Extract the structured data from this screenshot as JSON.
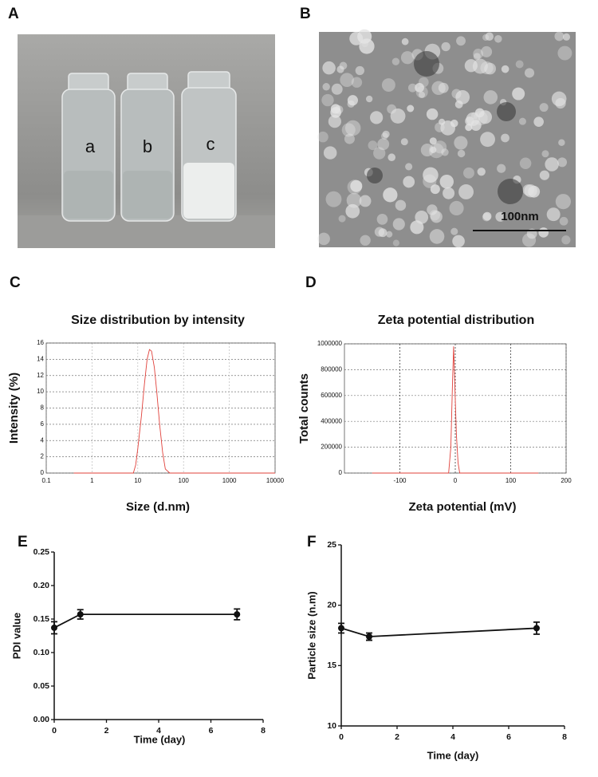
{
  "panel_labels": [
    "A",
    "B",
    "C",
    "D",
    "E",
    "F"
  ],
  "photo": {
    "labels": [
      "a",
      "b",
      "c"
    ]
  },
  "micrograph": {
    "scale_bar": "100nm"
  },
  "chart_data": [
    {
      "type": "line",
      "title": "Size distribution by intensity",
      "x_label": "Size (d.nm)",
      "y_label": "Intensity (%)",
      "log_x": true,
      "grid": true,
      "xlim": [
        0.1,
        10000
      ],
      "xticks": [
        0.1,
        1,
        10,
        100,
        1000,
        10000
      ],
      "ylim": [
        0,
        16
      ],
      "yticks": [
        0,
        2,
        4,
        6,
        8,
        10,
        12,
        14,
        16
      ],
      "series": [
        {
          "color": "#e0403a",
          "x": [
            0.4,
            8,
            9,
            10,
            12,
            14,
            16,
            18,
            20,
            23,
            26,
            30,
            35,
            40,
            50,
            10000
          ],
          "values": [
            0,
            0,
            1,
            3,
            7,
            11,
            14,
            15.2,
            15,
            13,
            10,
            6,
            2.5,
            0.5,
            0,
            0
          ]
        }
      ]
    },
    {
      "type": "line",
      "title": "Zeta potential distribution",
      "x_label": "Zeta potential (mV)",
      "y_label": "Total counts",
      "log_x": false,
      "grid": true,
      "xlim": [
        -200,
        200
      ],
      "xticks": [
        -100,
        0,
        100,
        200
      ],
      "ylim": [
        0,
        1000000
      ],
      "yticks": [
        0,
        200000,
        400000,
        600000,
        800000,
        1000000
      ],
      "series": [
        {
          "color": "#e0403a",
          "x": [
            -150,
            -12,
            -8,
            -5,
            -3,
            -1,
            2,
            5,
            8,
            150
          ],
          "values": [
            0,
            0,
            200000,
            700000,
            980000,
            700000,
            300000,
            80000,
            0,
            0
          ]
        }
      ]
    },
    {
      "type": "errorbar",
      "x_label": "Time (day)",
      "y_label": "PDI value",
      "log_x": false,
      "grid": false,
      "xlim": [
        0,
        8
      ],
      "xticks": [
        0,
        2,
        4,
        6,
        8
      ],
      "ylim": [
        0,
        0.25
      ],
      "yticks": [
        {
          "value": 0,
          "label": "0.00"
        },
        0.05,
        {
          "value": 0.1,
          "label": "0.10"
        },
        0.15,
        {
          "value": 0.2,
          "label": "0.20"
        },
        0.25
      ],
      "series": [
        {
          "color": "#111111",
          "x": [
            0,
            1,
            7
          ],
          "values": [
            0.137,
            0.157,
            0.157
          ],
          "errors": [
            0.009,
            0.007,
            0.008
          ]
        }
      ]
    },
    {
      "type": "errorbar",
      "x_label": "Time (day)",
      "y_label": "Particle size (n.m)",
      "log_x": false,
      "grid": false,
      "xlim": [
        0,
        8
      ],
      "xticks": [
        0,
        2,
        4,
        6,
        8
      ],
      "ylim": [
        10,
        25
      ],
      "yticks": [
        10,
        15,
        20,
        25
      ],
      "series": [
        {
          "color": "#111111",
          "x": [
            0,
            1,
            7
          ],
          "values": [
            18.1,
            17.4,
            18.1
          ],
          "errors": [
            0.4,
            0.3,
            0.5
          ]
        }
      ]
    }
  ]
}
